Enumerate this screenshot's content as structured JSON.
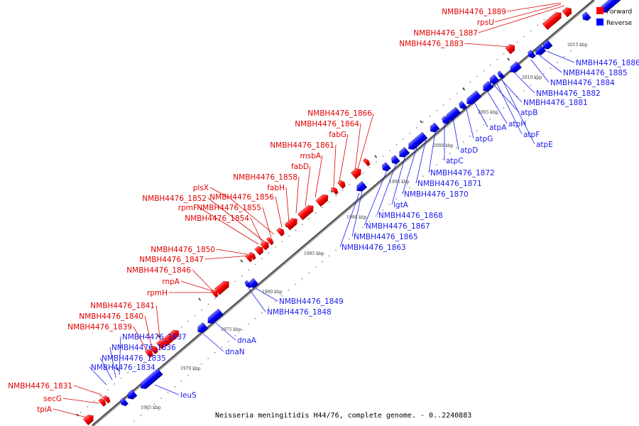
{
  "caption": "Neisseria meningitidis H44/76, complete genome. - 0..2240883",
  "legend": {
    "forward_label": "Forward",
    "reverse_label": "Reverse",
    "forward_color": "#ff0000",
    "reverse_color": "#0000ff"
  },
  "colors": {
    "forward": "#ff0000",
    "reverse": "#0000ff",
    "forward_text": "#e00000",
    "reverse_text": "#1a1aee",
    "axis": "#555555"
  },
  "kbp_labels": [
    "1965 kbp",
    "1970 kbp",
    "1975 kbp",
    "1980 kbp",
    "1985 kbp",
    "1990 kbp",
    "1995 kbp",
    "2000 kbp",
    "2005 kbp",
    "2010 kbp",
    "2015 kbp"
  ],
  "forward_labels": [
    "NMBH4476_1889",
    "rpsU",
    "NMBH4476_1887",
    "NMBH4476_1883",
    "NMBH4476_1866",
    "NMBH4476_1864",
    "fabG",
    "NMBH4476_1861",
    "msbA",
    "fabD",
    "NMBH4476_1858",
    "fabH",
    "plsX",
    "NMBH4476_1856",
    "NMBH4476_1852",
    "rpmF",
    "NMBH4476_1855",
    "NMBH4476_1854",
    "NMBH4476_1850",
    "NMBH4476_1847",
    "NMBH4476_1846",
    "rnpA",
    "rpmH",
    "NMBH4476_1841",
    "NMBH4476_1840",
    "NMBH4476_1839",
    "NMBH4476_1831",
    "secG",
    "tpiA"
  ],
  "reverse_labels": [
    "NMBH4476_1886",
    "NMBH4476_1885",
    "NMBH4476_1884",
    "NMBH4476_1882",
    "NMBH4476_1881",
    "atpB",
    "atpH",
    "atpF",
    "atpE",
    "atpA",
    "atpG",
    "atpD",
    "atpC",
    "NMBH4476_1872",
    "NMBH4476_1871",
    "NMBH4476_1870",
    "lgtA",
    "NMBH4476_1868",
    "NMBH4476_1867",
    "NMBH4476_1865",
    "NMBH4476_1863",
    "NMBH4476_1849",
    "NMBH4476_1848",
    "dnaA",
    "dnaN",
    "NMBH4476_1837",
    "NMBH4476_1836",
    "NMBH4476_1835",
    "NMBH4476_1834",
    "leuS"
  ]
}
